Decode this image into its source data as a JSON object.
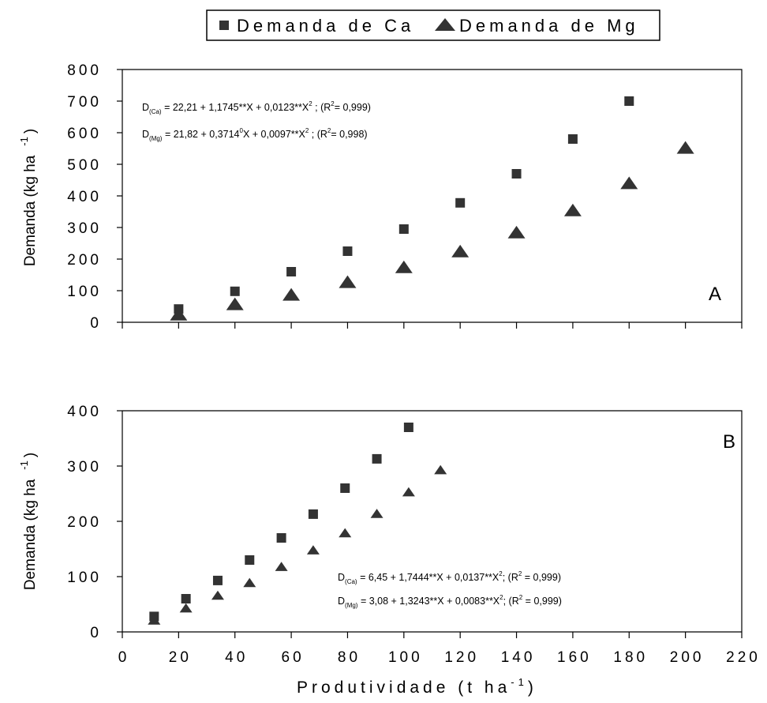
{
  "legend": {
    "items": [
      {
        "label": "Demanda de Ca",
        "marker": "square"
      },
      {
        "label": "Demanda de Mg",
        "marker": "triangle"
      }
    ]
  },
  "x_axis": {
    "label_main": "Produtividade (t  ha",
    "label_exp": "-1",
    "label_close": ")"
  },
  "colors": {
    "marker": "#333333",
    "axis": "#000000"
  },
  "chart_data": [
    {
      "type": "scatter",
      "panel_label": "A",
      "ylabel": "Demanda (kg ha",
      "ylabel_exp": "-1",
      "ylabel_close": ")",
      "ylim": [
        0,
        800
      ],
      "yticks": [
        "0",
        "100",
        "200",
        "300",
        "400",
        "500",
        "600",
        "700",
        "800"
      ],
      "xlim": [
        0,
        220
      ],
      "xticks": [],
      "grid": false,
      "equations": [
        {
          "lhs": "D",
          "sub": "(Ca)",
          "text1": " = 22,21 + 1,1745**X + 0,0123**X",
          "sup": "2",
          "text2": " ; (R",
          "sup2": "2",
          "text3": "= 0,999)"
        },
        {
          "lhs": "D",
          "sub": "(Mg)",
          "text1": " = 21,82 + 0,3714",
          "sup": "0",
          "text2": "X + 0,0097**X",
          "sup2": "2",
          "text3": " ; (R",
          "sup3": "2",
          "text4": "= 0,998)"
        }
      ],
      "series": [
        {
          "name": "Demanda de Ca",
          "marker": "square",
          "x": [
            20,
            40,
            60,
            80,
            100,
            120,
            140,
            160,
            180
          ],
          "y": [
            42,
            98,
            160,
            225,
            295,
            378,
            470,
            580,
            700
          ]
        },
        {
          "name": "Demanda de Mg",
          "marker": "triangle",
          "x": [
            20,
            40,
            60,
            80,
            100,
            120,
            140,
            160,
            180,
            200
          ],
          "y": [
            22,
            55,
            85,
            125,
            172,
            222,
            282,
            352,
            438,
            550
          ]
        }
      ]
    },
    {
      "type": "scatter",
      "panel_label": "B",
      "ylabel": "Demanda (kg ha",
      "ylabel_exp": "-1",
      "ylabel_close": ")",
      "ylim": [
        0,
        400
      ],
      "yticks": [
        "0",
        "100",
        "200",
        "300",
        "400"
      ],
      "xlim": [
        0,
        220
      ],
      "xticks": [
        "0",
        "20",
        "40",
        "60",
        "80",
        "100",
        "120",
        "140",
        "160",
        "180",
        "200",
        "220"
      ],
      "grid": false,
      "equations": [
        {
          "lhs": "D",
          "sub": "(Ca)",
          "text1": " = 6,45 + 1,7444**X + 0,0137**X",
          "sup": "2",
          "text2": "; (R",
          "sup2": "2",
          "text3": " = 0,999)"
        },
        {
          "lhs": "D",
          "sub": "(Mg)",
          "text1": " = 3,08 + 1,3243**X + 0,0083**X",
          "sup": "2",
          "text2": "; (R",
          "sup2": "2",
          "text3": " = 0,999)"
        }
      ],
      "series": [
        {
          "name": "Demanda de Ca",
          "marker": "square",
          "x": [
            11.3,
            22.6,
            33.9,
            45.2,
            56.5,
            67.8,
            79.1,
            90.4,
            101.7
          ],
          "y": [
            28,
            60,
            93,
            130,
            170,
            213,
            260,
            313,
            370
          ]
        },
        {
          "name": "Demanda de Mg",
          "marker": "triangle",
          "x": [
            11.3,
            22.6,
            33.9,
            45.2,
            56.5,
            67.8,
            79.1,
            90.4,
            101.7,
            113
          ],
          "y": [
            20,
            42,
            65,
            88,
            117,
            147,
            178,
            213,
            252,
            292
          ]
        }
      ]
    }
  ]
}
